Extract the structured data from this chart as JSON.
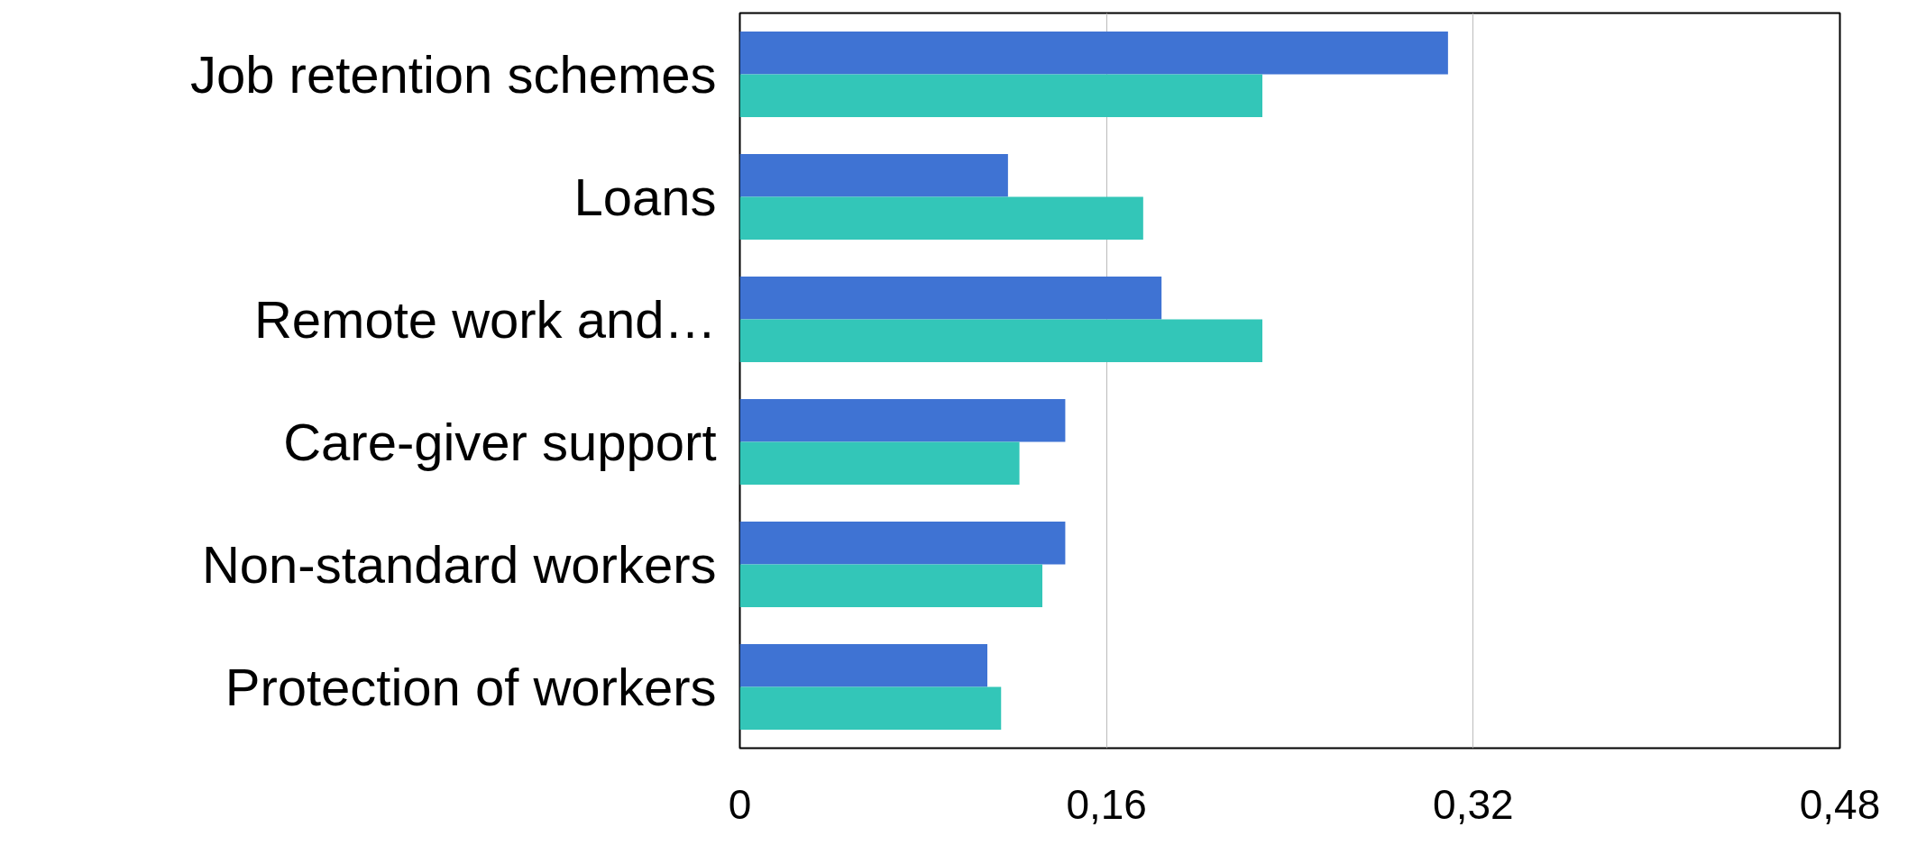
{
  "chart_data": {
    "type": "bar",
    "orientation": "horizontal",
    "categories": [
      "Job retention schemes",
      "Loans",
      "Remote work and…",
      "Care-giver support",
      "Non-standard workers",
      "Protection of workers"
    ],
    "series": [
      {
        "color": "#3f73d3",
        "values": [
          0.309,
          0.117,
          0.184,
          0.142,
          0.142,
          0.108
        ]
      },
      {
        "color": "#33c6b8",
        "values": [
          0.228,
          0.176,
          0.228,
          0.122,
          0.132,
          0.114
        ]
      }
    ],
    "xlim": [
      0,
      0.48
    ],
    "xticks": [
      {
        "value": 0,
        "label": "0"
      },
      {
        "value": 0.16,
        "label": "0,16"
      },
      {
        "value": 0.32,
        "label": "0,32"
      },
      {
        "value": 0.48,
        "label": "0,48"
      }
    ],
    "grid": "x"
  }
}
